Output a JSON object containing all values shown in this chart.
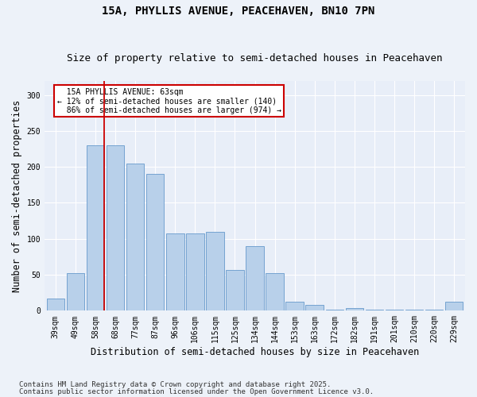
{
  "title": "15A, PHYLLIS AVENUE, PEACEHAVEN, BN10 7PN",
  "subtitle": "Size of property relative to semi-detached houses in Peacehaven",
  "xlabel": "Distribution of semi-detached houses by size in Peacehaven",
  "ylabel": "Number of semi-detached properties",
  "categories": [
    "39sqm",
    "49sqm",
    "58sqm",
    "68sqm",
    "77sqm",
    "87sqm",
    "96sqm",
    "106sqm",
    "115sqm",
    "125sqm",
    "134sqm",
    "144sqm",
    "153sqm",
    "163sqm",
    "172sqm",
    "182sqm",
    "191sqm",
    "201sqm",
    "210sqm",
    "220sqm",
    "229sqm"
  ],
  "values": [
    17,
    52,
    230,
    230,
    205,
    190,
    108,
    108,
    110,
    57,
    90,
    52,
    12,
    8,
    2,
    4,
    2,
    1,
    1,
    1,
    12
  ],
  "bar_color": "#b8d0ea",
  "bar_edge_color": "#6699cc",
  "property_line_x": 2.43,
  "property_line_label": "15A PHYLLIS AVENUE: 63sqm",
  "smaller_pct": "12%",
  "smaller_n": 140,
  "larger_pct": "86%",
  "larger_n": 974,
  "annotation_box_color": "#ffffff",
  "annotation_box_edge": "#cc0000",
  "vline_color": "#cc0000",
  "ylim": [
    0,
    320
  ],
  "yticks": [
    0,
    50,
    100,
    150,
    200,
    250,
    300
  ],
  "footnote1": "Contains HM Land Registry data © Crown copyright and database right 2025.",
  "footnote2": "Contains public sector information licensed under the Open Government Licence v3.0.",
  "bg_color": "#edf2f9",
  "plot_bg_color": "#e8eef8",
  "title_fontsize": 10,
  "subtitle_fontsize": 9,
  "tick_fontsize": 7,
  "label_fontsize": 8.5,
  "footnote_fontsize": 6.5
}
